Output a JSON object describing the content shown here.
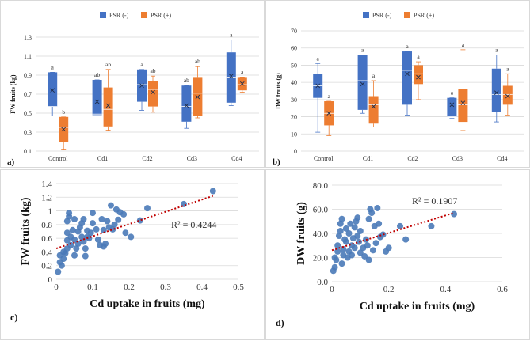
{
  "colors": {
    "psr_neg": "#4472c4",
    "psr_pos": "#ed7d31",
    "scatter": "#4a7ab8",
    "trend": "#c00000",
    "grid": "#d9d9d9"
  },
  "chart_data": [
    {
      "id": "a",
      "type": "box",
      "panel_label": "a)",
      "ylabel": "FW fruits (kg)",
      "ylim": [
        0.1,
        1.3
      ],
      "yticks": [
        "0.1",
        "0.3",
        "0.5",
        "0.7",
        "0.9",
        "1.1",
        "1.3"
      ],
      "categories": [
        "Control",
        "Cd1",
        "Cd2",
        "Cd3",
        "Cd4"
      ],
      "legend": [
        "PSR (-)",
        "PSR (+)"
      ],
      "series": [
        {
          "name": "PSR (-)",
          "boxes": [
            {
              "min": 0.47,
              "q1": 0.57,
              "median": 0.57,
              "q3": 0.93,
              "max": 0.93,
              "mean": 0.74,
              "letter": "a"
            },
            {
              "min": 0.47,
              "q1": 0.48,
              "median": 0.49,
              "q3": 0.85,
              "max": 0.85,
              "mean": 0.62,
              "letter": "ab"
            },
            {
              "min": 0.53,
              "q1": 0.62,
              "median": 0.8,
              "q3": 0.96,
              "max": 0.96,
              "mean": 0.79,
              "letter": "a"
            },
            {
              "min": 0.34,
              "q1": 0.41,
              "median": 0.57,
              "q3": 0.79,
              "max": 0.79,
              "mean": 0.58,
              "letter": "ab"
            },
            {
              "min": 0.58,
              "q1": 0.61,
              "median": 0.88,
              "q3": 1.14,
              "max": 1.27,
              "mean": 0.89,
              "letter": "a"
            }
          ]
        },
        {
          "name": "PSR (+)",
          "boxes": [
            {
              "min": 0.12,
              "q1": 0.2,
              "median": 0.35,
              "q3": 0.46,
              "max": 0.46,
              "mean": 0.33,
              "letter": "b"
            },
            {
              "min": 0.32,
              "q1": 0.36,
              "median": 0.54,
              "q3": 0.77,
              "max": 0.96,
              "mean": 0.58,
              "letter": "ab"
            },
            {
              "min": 0.51,
              "q1": 0.57,
              "median": 0.75,
              "q3": 0.84,
              "max": 0.89,
              "mean": 0.72,
              "letter": "ab"
            },
            {
              "min": 0.45,
              "q1": 0.47,
              "median": 0.71,
              "q3": 0.88,
              "max": 0.99,
              "mean": 0.67,
              "letter": "ab"
            },
            {
              "min": 0.72,
              "q1": 0.74,
              "median": 0.8,
              "q3": 0.88,
              "max": 0.88,
              "mean": 0.81,
              "letter": "a"
            }
          ]
        }
      ]
    },
    {
      "id": "b",
      "type": "box",
      "panel_label": "b)",
      "ylabel": "DW fruits (g)",
      "ylim": [
        0,
        70
      ],
      "yticks": [
        "0",
        "10",
        "20",
        "30",
        "40",
        "50",
        "60",
        "70"
      ],
      "categories": [
        "Control",
        "Cd1",
        "Cd2",
        "Cd3",
        "Cd4"
      ],
      "legend": [
        "PSR (-)",
        "PSR (+)"
      ],
      "series": [
        {
          "name": "PSR (-)",
          "boxes": [
            {
              "min": 11,
              "q1": 31,
              "median": 38,
              "q3": 45,
              "max": 51,
              "mean": 38,
              "letter": "a"
            },
            {
              "min": 22,
              "q1": 24,
              "median": 41,
              "q3": 56,
              "max": 56,
              "mean": 39,
              "letter": "a"
            },
            {
              "min": 21,
              "q1": 27,
              "median": 47,
              "q3": 58,
              "max": 58,
              "mean": 45,
              "letter": "a"
            },
            {
              "min": 19,
              "q1": 20,
              "median": 20,
              "q3": 31,
              "max": 31,
              "mean": 27,
              "letter": "a"
            },
            {
              "min": 17,
              "q1": 23,
              "median": 33,
              "q3": 48,
              "max": 56,
              "mean": 34,
              "letter": "a"
            }
          ]
        },
        {
          "name": "PSR (+)",
          "boxes": [
            {
              "min": 9,
              "q1": 15,
              "median": 22,
              "q3": 29,
              "max": 29,
              "mean": 22,
              "letter": "a"
            },
            {
              "min": 14,
              "q1": 16,
              "median": 27,
              "q3": 32,
              "max": 41,
              "mean": 26,
              "letter": "a"
            },
            {
              "min": 30,
              "q1": 39,
              "median": 45,
              "q3": 50,
              "max": 52,
              "mean": 43,
              "letter": "a"
            },
            {
              "min": 12,
              "q1": 17,
              "median": 27,
              "q3": 36,
              "max": 59,
              "mean": 28,
              "letter": "a"
            },
            {
              "min": 21,
              "q1": 27,
              "median": 33,
              "q3": 38,
              "max": 45,
              "mean": 32,
              "letter": "a"
            }
          ]
        }
      ]
    },
    {
      "id": "c",
      "type": "scatter",
      "panel_label": "c)",
      "xlabel": "Cd uptake in fruits (mg)",
      "ylabel": "FW fruits (kg)",
      "xlim": [
        0,
        0.5
      ],
      "ylim": [
        0,
        1.4
      ],
      "xticks": [
        "0",
        "0.1",
        "0.2",
        "0.3",
        "0.4",
        "0.5"
      ],
      "yticks": [
        "0",
        "0.2",
        "0.4",
        "0.6",
        "0.8",
        "1",
        "1.2",
        "1.4"
      ],
      "r2_label": "R² = 0.4244",
      "trend": {
        "x0": 0,
        "y0": 0.45,
        "x1": 0.43,
        "y1": 1.22
      },
      "points": [
        [
          0.005,
          0.11
        ],
        [
          0.01,
          0.35
        ],
        [
          0.01,
          0.25
        ],
        [
          0.015,
          0.2
        ],
        [
          0.02,
          0.3
        ],
        [
          0.02,
          0.4
        ],
        [
          0.025,
          0.38
        ],
        [
          0.03,
          0.45
        ],
        [
          0.03,
          0.57
        ],
        [
          0.03,
          0.68
        ],
        [
          0.03,
          0.85
        ],
        [
          0.035,
          0.92
        ],
        [
          0.035,
          0.97
        ],
        [
          0.04,
          0.5
        ],
        [
          0.04,
          0.62
        ],
        [
          0.045,
          0.72
        ],
        [
          0.05,
          0.35
        ],
        [
          0.05,
          0.58
        ],
        [
          0.05,
          0.88
        ],
        [
          0.055,
          0.45
        ],
        [
          0.06,
          0.52
        ],
        [
          0.06,
          0.7
        ],
        [
          0.065,
          0.76
        ],
        [
          0.07,
          0.62
        ],
        [
          0.07,
          0.82
        ],
        [
          0.075,
          0.55
        ],
        [
          0.075,
          0.88
        ],
        [
          0.08,
          0.34
        ],
        [
          0.08,
          0.45
        ],
        [
          0.085,
          0.62
        ],
        [
          0.085,
          0.71
        ],
        [
          0.09,
          0.6
        ],
        [
          0.095,
          0.68
        ],
        [
          0.1,
          0.82
        ],
        [
          0.1,
          0.97
        ],
        [
          0.11,
          0.73
        ],
        [
          0.115,
          0.58
        ],
        [
          0.12,
          0.5
        ],
        [
          0.125,
          0.88
        ],
        [
          0.13,
          0.72
        ],
        [
          0.13,
          0.48
        ],
        [
          0.135,
          0.52
        ],
        [
          0.14,
          0.85
        ],
        [
          0.145,
          0.76
        ],
        [
          0.15,
          1.08
        ],
        [
          0.155,
          0.73
        ],
        [
          0.16,
          0.8
        ],
        [
          0.165,
          1.02
        ],
        [
          0.17,
          0.87
        ],
        [
          0.175,
          0.98
        ],
        [
          0.185,
          0.95
        ],
        [
          0.19,
          0.68
        ],
        [
          0.205,
          0.62
        ],
        [
          0.23,
          0.86
        ],
        [
          0.25,
          1.04
        ],
        [
          0.35,
          1.1
        ],
        [
          0.43,
          1.29
        ]
      ]
    },
    {
      "id": "d",
      "type": "scatter",
      "panel_label": "d)",
      "xlabel": "Cd uptake in fruits (mg)",
      "ylabel": "DW fruits (g)",
      "xlim": [
        0,
        0.6
      ],
      "ylim": [
        0,
        80
      ],
      "xticks": [
        "0",
        "0.2",
        "0.4",
        "0.6"
      ],
      "yticks": [
        "0.0",
        "20.0",
        "40.0",
        "60.0",
        "80.0"
      ],
      "r2_label": "R² = 0.1907",
      "trend": {
        "x0": 0,
        "y0": 26,
        "x1": 0.43,
        "y1": 57
      },
      "points": [
        [
          0.005,
          9
        ],
        [
          0.01,
          12
        ],
        [
          0.01,
          20
        ],
        [
          0.015,
          18
        ],
        [
          0.02,
          25
        ],
        [
          0.02,
          30
        ],
        [
          0.025,
          38
        ],
        [
          0.03,
          42
        ],
        [
          0.03,
          48
        ],
        [
          0.035,
          52
        ],
        [
          0.035,
          15
        ],
        [
          0.04,
          22
        ],
        [
          0.04,
          27
        ],
        [
          0.045,
          35
        ],
        [
          0.05,
          44
        ],
        [
          0.05,
          33
        ],
        [
          0.055,
          20
        ],
        [
          0.06,
          25
        ],
        [
          0.06,
          40
        ],
        [
          0.065,
          48
        ],
        [
          0.07,
          30
        ],
        [
          0.07,
          22
        ],
        [
          0.075,
          36
        ],
        [
          0.08,
          28
        ],
        [
          0.08,
          45
        ],
        [
          0.085,
          50
        ],
        [
          0.09,
          53
        ],
        [
          0.09,
          38
        ],
        [
          0.095,
          33
        ],
        [
          0.1,
          24
        ],
        [
          0.1,
          42
        ],
        [
          0.11,
          28
        ],
        [
          0.115,
          21
        ],
        [
          0.12,
          35
        ],
        [
          0.125,
          30
        ],
        [
          0.13,
          18
        ],
        [
          0.13,
          52
        ],
        [
          0.135,
          60
        ],
        [
          0.14,
          57
        ],
        [
          0.145,
          26
        ],
        [
          0.15,
          46
        ],
        [
          0.155,
          32
        ],
        [
          0.16,
          61
        ],
        [
          0.165,
          48
        ],
        [
          0.17,
          37
        ],
        [
          0.18,
          39
        ],
        [
          0.19,
          25
        ],
        [
          0.2,
          28
        ],
        [
          0.24,
          46
        ],
        [
          0.26,
          35
        ],
        [
          0.35,
          46
        ],
        [
          0.43,
          56
        ]
      ]
    }
  ]
}
